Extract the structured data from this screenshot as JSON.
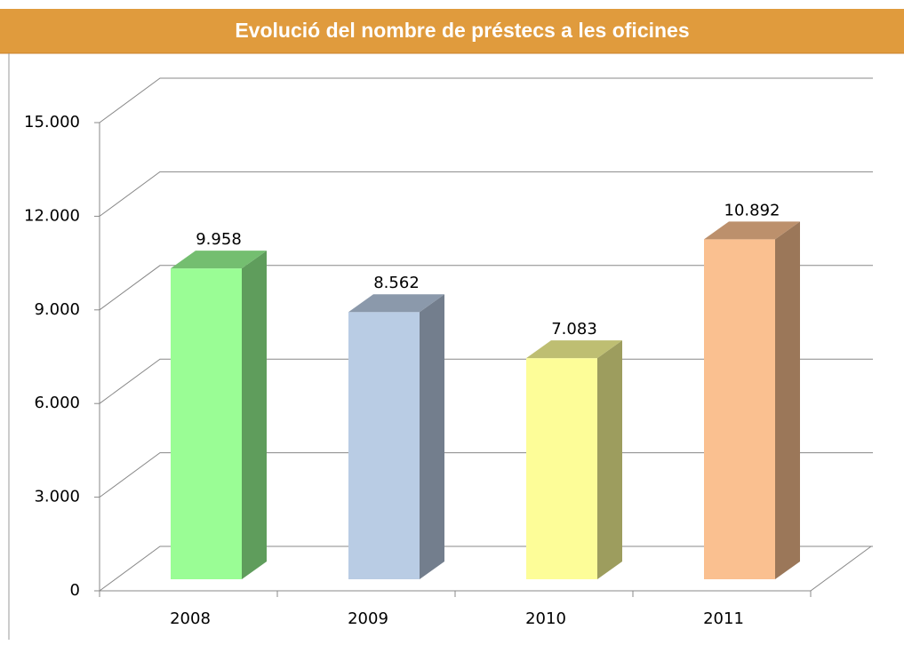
{
  "chart_data": {
    "type": "bar3d",
    "title": "Evolució del nombre de préstecs a les oficines",
    "categories": [
      "2008",
      "2009",
      "2010",
      "2011"
    ],
    "values": [
      9958,
      8562,
      7083,
      10892
    ],
    "value_labels": [
      "9.958",
      "8.562",
      "7.083",
      "10.892"
    ],
    "colors": [
      "#9afd95",
      "#b9cce4",
      "#fdfd98",
      "#fac090"
    ],
    "ylim": [
      0,
      15000
    ],
    "yticks": [
      0,
      {
        "value": 3000,
        "label": "3.000"
      },
      {
        "value": 6000,
        "label": "6.000"
      },
      {
        "value": 9000,
        "label": "9.000"
      },
      {
        "value": 12000,
        "label": "12.000"
      },
      {
        "value": 15000,
        "label": "15.000"
      }
    ],
    "grid": true
  }
}
